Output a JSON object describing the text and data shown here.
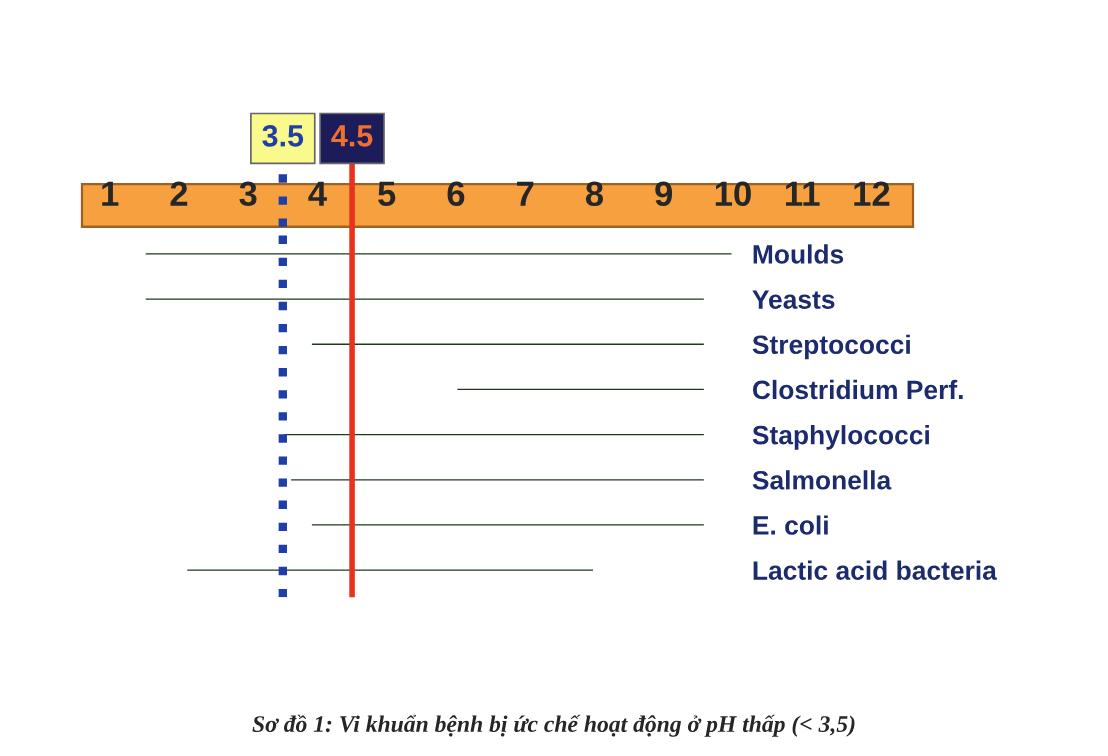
{
  "chart_data": {
    "type": "bar",
    "orientation": "horizontal",
    "categories": [
      "Moulds",
      "Yeasts",
      "Streptococci",
      "Clostridium Perf.",
      "Staphylococci",
      "Salmonella",
      "E. coli",
      "Lactic acid bacteria"
    ],
    "base": [
      1.5,
      1.5,
      3.9,
      6.0,
      3.5,
      3.6,
      3.9,
      2.1
    ],
    "values": [
      8.5,
      8.1,
      5.7,
      3.6,
      6.1,
      6.0,
      5.7,
      5.9
    ],
    "color": "#1e3a1e",
    "xlim": [
      0.6,
      12.6
    ],
    "xticks": [
      1,
      2,
      3,
      4,
      5,
      6,
      7,
      8,
      9,
      10,
      11,
      12
    ],
    "ref_lines": [
      {
        "axis": "x",
        "value": 3.5,
        "label": "3.5",
        "color": "#1f3fa6",
        "line_style": "dotted"
      },
      {
        "axis": "x",
        "value": 4.5,
        "label": "4.5",
        "color": "#e8321e",
        "line_style": "solid"
      }
    ],
    "annotations": [
      "Sơ đồ 1: Vi khuẩn bệnh bị ức chế hoạt động ở pH thấp (< 3,5)"
    ],
    "grid": false
  }
}
